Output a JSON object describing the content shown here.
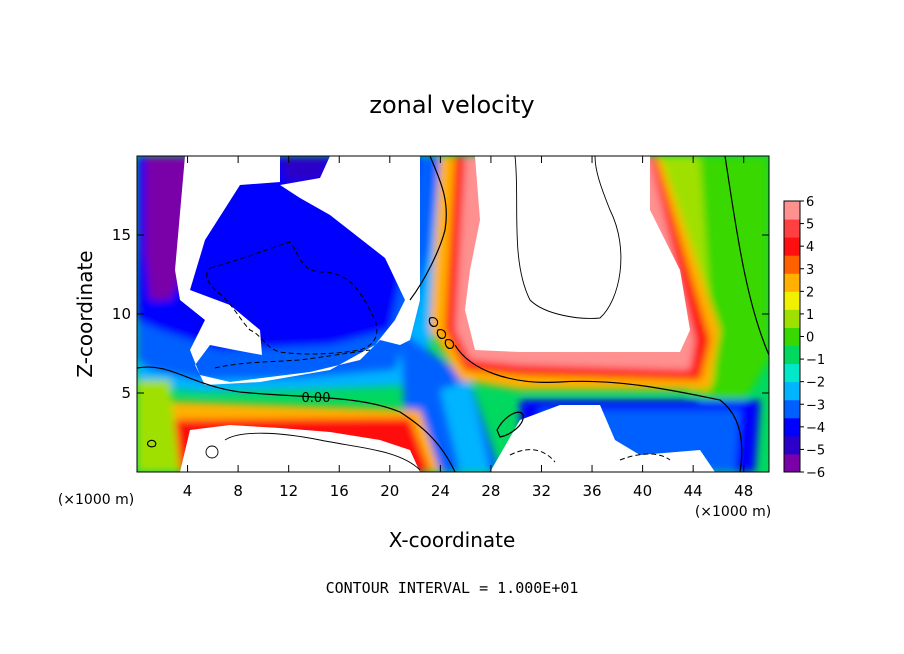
{
  "chart_data": {
    "type": "heatmap",
    "title": "zonal velocity",
    "xlabel": "X-coordinate",
    "ylabel": "Z-coordinate",
    "x_units": "(×1000 m)",
    "xlim": [
      0,
      50
    ],
    "ylim": [
      0,
      20
    ],
    "x_ticks": [
      4,
      8,
      12,
      16,
      20,
      24,
      28,
      32,
      36,
      40,
      44,
      48
    ],
    "y_ticks": [
      5,
      10,
      15
    ],
    "contour_label": "0.00",
    "footer": "CONTOUR INTERVAL = 1.000E+01",
    "colorbar": {
      "min": -6,
      "max": 6,
      "ticks": [
        6,
        5,
        4,
        3,
        2,
        1,
        0,
        -1,
        -2,
        -3,
        -4,
        -5,
        -6
      ],
      "tick_labels": [
        "6",
        "5",
        "4",
        "3",
        "2",
        "1",
        "0",
        "−1",
        "−2",
        "−3",
        "−4",
        "−5",
        "−6"
      ],
      "colors": [
        "#7a00a8",
        "#2b00c8",
        "#0000ff",
        "#0060ff",
        "#00b4ff",
        "#00e8c8",
        "#00d860",
        "#38d800",
        "#a0e000",
        "#f0f000",
        "#ffb000",
        "#ff6000",
        "#ff1010",
        "#ff4040",
        "#ff9090"
      ]
    }
  }
}
